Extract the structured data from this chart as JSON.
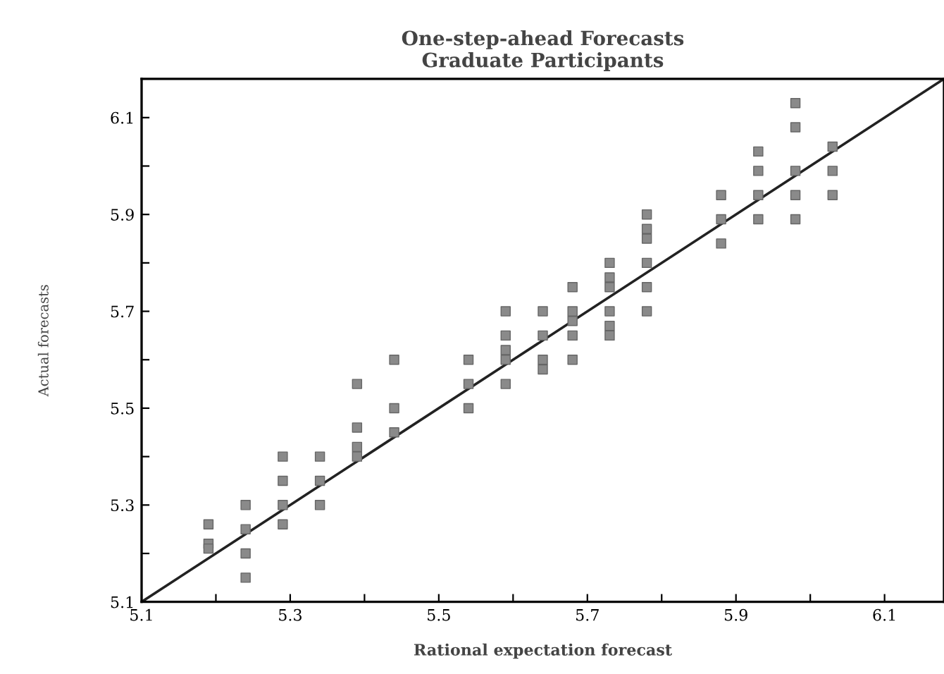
{
  "chart_data": {
    "type": "scatter",
    "title": "One-step-ahead Forecasts\nGraduate Participants",
    "xlabel": "Rational expectation forecast",
    "ylabel": "Actual forecasts",
    "xlim": [
      5.1,
      6.18
    ],
    "ylim": [
      5.1,
      6.18
    ],
    "xticks": [
      5.1,
      {
        "value": 5.2,
        "label": null
      },
      5.3,
      {
        "value": 5.4,
        "label": null
      },
      5.5,
      {
        "value": 5.6,
        "label": null
      },
      5.7,
      {
        "value": 5.8,
        "label": null
      },
      5.9,
      {
        "value": 6.0,
        "label": null
      },
      6.1
    ],
    "yticks": [
      5.1,
      {
        "value": 5.2,
        "label": null
      },
      5.3,
      {
        "value": 5.4,
        "label": null
      },
      5.5,
      {
        "value": 5.6,
        "label": null
      },
      5.7,
      {
        "value": 5.8,
        "label": null
      },
      5.9,
      {
        "value": 6.0,
        "label": null
      },
      6.1
    ],
    "grid": false,
    "legend": false,
    "marker": "square",
    "series": [
      {
        "color": "#8a8a8a",
        "x": [
          5.19,
          5.19,
          5.19,
          5.24,
          5.24,
          5.24,
          5.24,
          5.29,
          5.29,
          5.29,
          5.29,
          5.34,
          5.34,
          5.34,
          5.39,
          5.39,
          5.39,
          5.39,
          5.44,
          5.44,
          5.44,
          5.54,
          5.54,
          5.54,
          5.59,
          5.59,
          5.59,
          5.59,
          5.59,
          5.64,
          5.64,
          5.64,
          5.64,
          5.68,
          5.68,
          5.68,
          5.68,
          5.68,
          5.73,
          5.73,
          5.73,
          5.73,
          5.73,
          5.73,
          5.78,
          5.78,
          5.78,
          5.78,
          5.78,
          5.78,
          5.88,
          5.88,
          5.88,
          5.93,
          5.93,
          5.93,
          5.93,
          5.98,
          5.98,
          5.98,
          5.98,
          5.98,
          6.03,
          6.03,
          6.03
        ],
        "values": [
          5.26,
          5.22,
          5.21,
          5.3,
          5.25,
          5.2,
          5.15,
          5.4,
          5.35,
          5.3,
          5.26,
          5.4,
          5.35,
          5.3,
          5.55,
          5.46,
          5.42,
          5.4,
          5.6,
          5.5,
          5.45,
          5.6,
          5.55,
          5.5,
          5.7,
          5.65,
          5.62,
          5.6,
          5.55,
          5.7,
          5.65,
          5.6,
          5.58,
          5.75,
          5.7,
          5.68,
          5.65,
          5.6,
          5.8,
          5.77,
          5.75,
          5.7,
          5.67,
          5.65,
          5.9,
          5.87,
          5.85,
          5.8,
          5.75,
          5.7,
          5.94,
          5.89,
          5.84,
          6.03,
          5.99,
          5.94,
          5.89,
          6.13,
          6.08,
          5.99,
          5.94,
          5.89,
          6.04,
          5.99,
          5.94
        ]
      },
      {
        "type": "line",
        "color": "#222222",
        "marker": "none",
        "x": [
          5.1,
          6.18
        ],
        "values": [
          5.1,
          6.18
        ]
      }
    ]
  }
}
